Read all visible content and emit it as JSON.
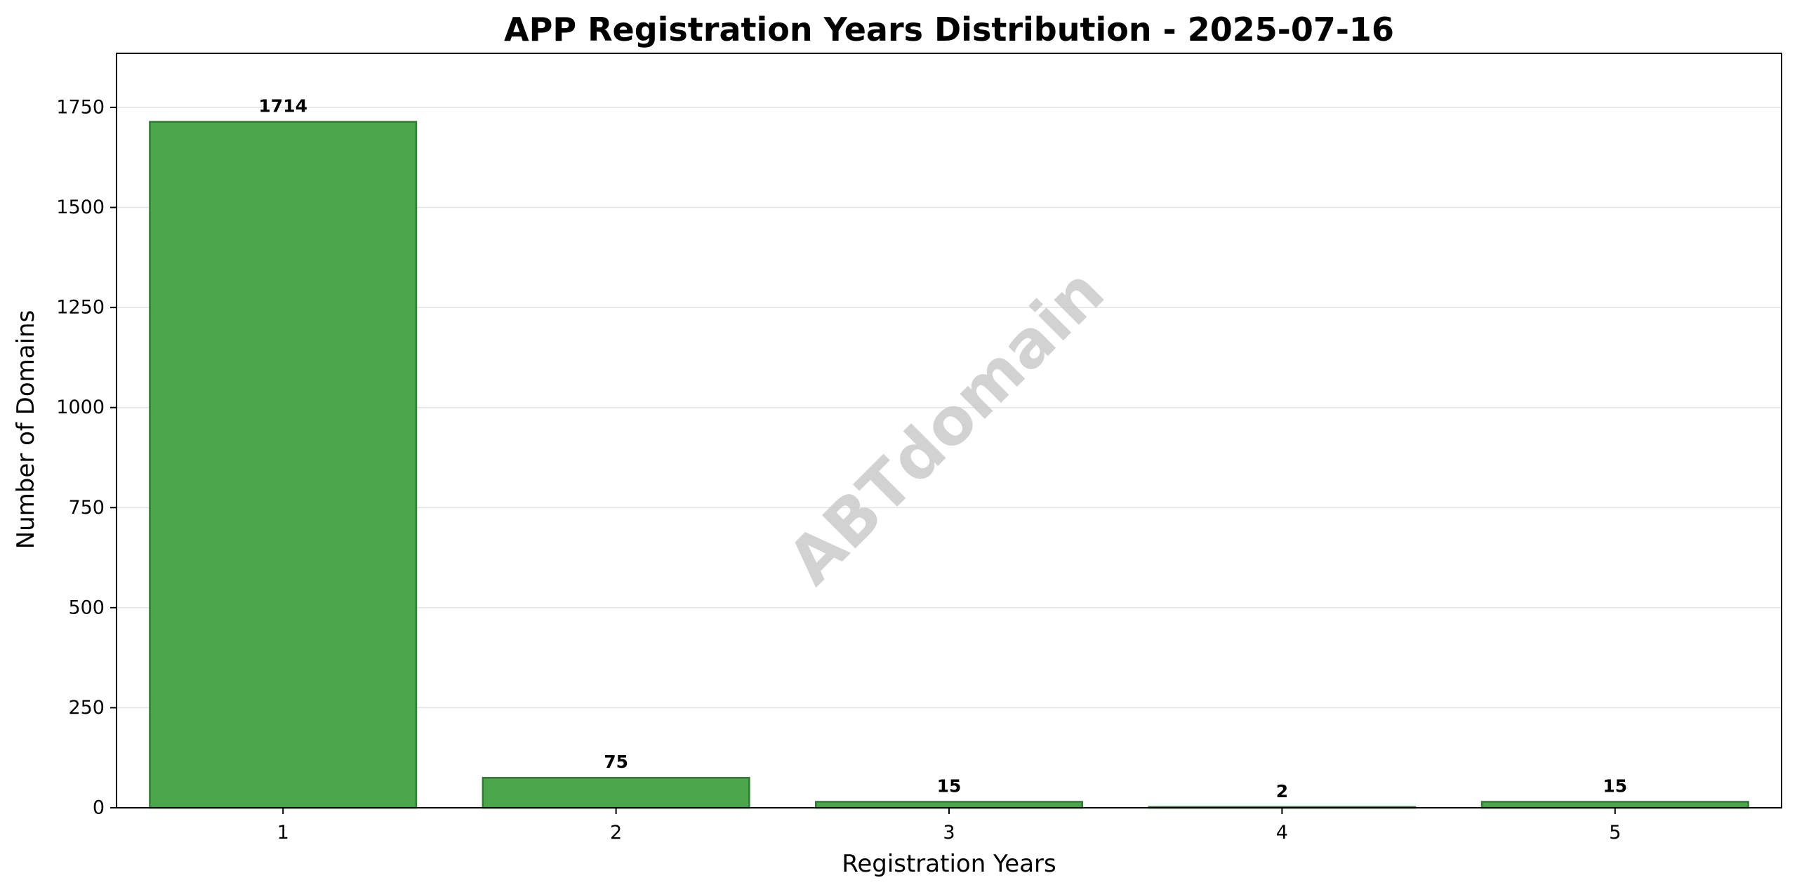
{
  "chart_data": {
    "type": "bar",
    "title": "APP Registration Years Distribution - 2025-07-16",
    "xlabel": "Registration Years",
    "ylabel": "Number of Domains",
    "categories": [
      "1",
      "2",
      "3",
      "4",
      "5"
    ],
    "values": [
      1714,
      75,
      15,
      2,
      15
    ],
    "data_labels": [
      "1714",
      "75",
      "15",
      "2",
      "15"
    ],
    "ylim": [
      0,
      1885
    ],
    "yticks": [
      0,
      250,
      500,
      750,
      1000,
      1250,
      1500,
      1750
    ],
    "ytick_labels": [
      "0",
      "250",
      "500",
      "750",
      "1000",
      "1250",
      "1500",
      "1750"
    ],
    "grid": "horizontal",
    "legend": "none",
    "bar_color": "#4ca64c",
    "bar_edge_color": "#2e7d32"
  },
  "watermark": "ABTdomain"
}
